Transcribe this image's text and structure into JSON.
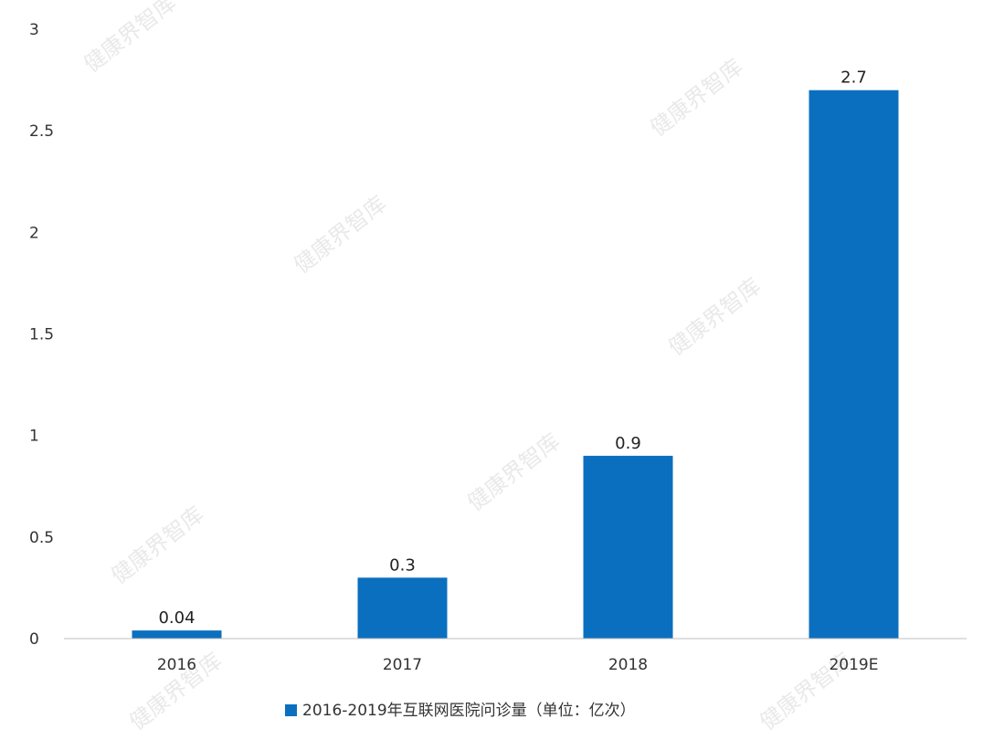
{
  "chart_data": {
    "type": "bar",
    "categories": [
      "2016",
      "2017",
      "2018",
      "2019E"
    ],
    "series": [
      {
        "name": "2016-2019年互联网医院问诊量（单位：亿次）",
        "values": [
          0.04,
          0.3,
          0.9,
          2.7
        ]
      }
    ],
    "data_labels": [
      "0.04",
      "0.3",
      "0.9",
      "2.7"
    ],
    "y_ticks": [
      0,
      0.5,
      1,
      1.5,
      2,
      2.5,
      3
    ],
    "y_tick_labels": [
      "0",
      "0.5",
      "1",
      "1.5",
      "2",
      "2.5",
      "3"
    ],
    "ylim": [
      0,
      3
    ],
    "grid": false,
    "legend_position": "bottom",
    "bar_color": "#0b6fc0",
    "watermark": "健康界智库"
  }
}
